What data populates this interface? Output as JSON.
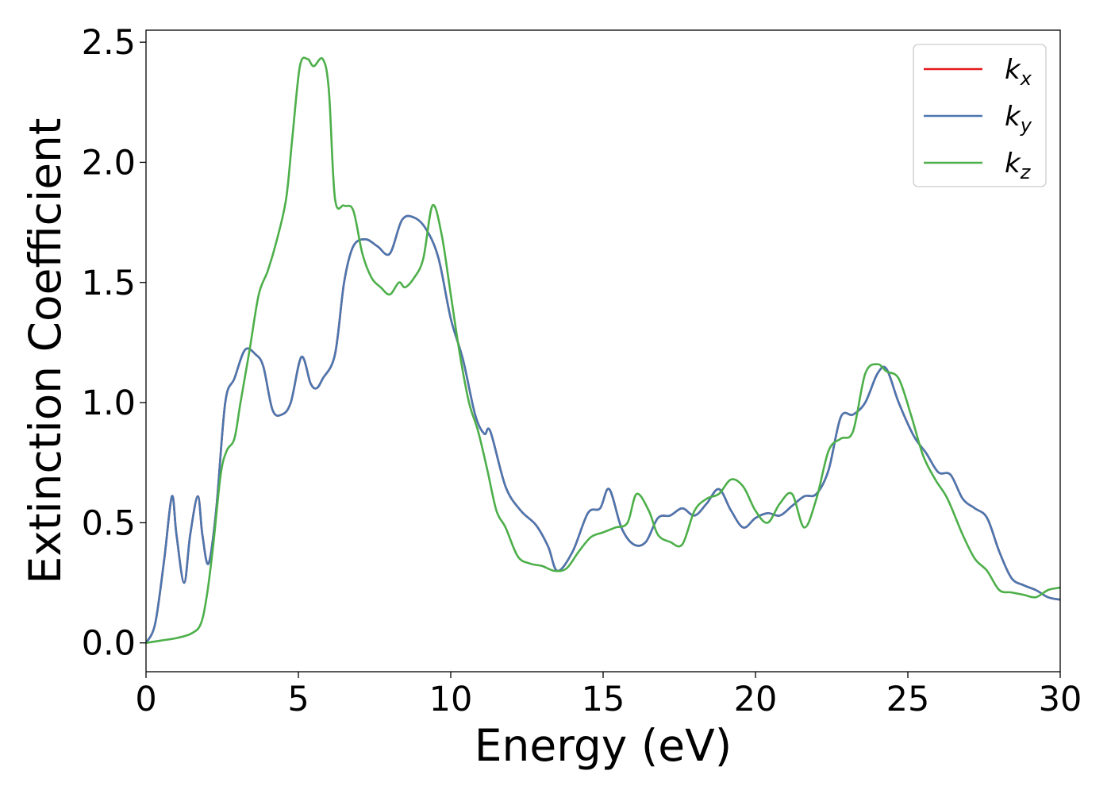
{
  "chart_data": {
    "type": "line",
    "title": "",
    "xlabel": "Energy (eV)",
    "ylabel": "Extinction Coefficient",
    "xlim": [
      0,
      30
    ],
    "ylim": [
      -0.12,
      2.55
    ],
    "xticks": [
      0,
      5,
      10,
      15,
      20,
      25,
      30
    ],
    "xtick_labels": [
      "0",
      "5",
      "10",
      "15",
      "20",
      "25",
      "30"
    ],
    "yticks": [
      0.0,
      0.5,
      1.0,
      1.5,
      2.0,
      2.5
    ],
    "ytick_labels": [
      "0.0",
      "0.5",
      "1.0",
      "1.5",
      "2.0",
      "2.5"
    ],
    "grid": false,
    "legend_position": "top-right",
    "series": [
      {
        "name": "k",
        "subscript": "x",
        "color": "#e41a1c",
        "x": [
          0,
          0.3,
          0.6,
          0.85,
          1.0,
          1.25,
          1.45,
          1.7,
          1.85,
          2.05,
          2.3,
          2.6,
          2.9,
          3.25,
          3.6,
          3.85,
          4.15,
          4.45,
          4.75,
          5.1,
          5.4,
          5.6,
          5.8,
          6.2,
          6.5,
          6.8,
          7.2,
          7.6,
          8.0,
          8.4,
          8.8,
          9.2,
          9.6,
          10.0,
          10.4,
          10.8,
          11.1,
          11.3,
          11.8,
          12.3,
          12.8,
          13.2,
          13.5,
          14.0,
          14.5,
          14.9,
          15.2,
          15.6,
          16.0,
          16.4,
          16.8,
          17.2,
          17.6,
          18.0,
          18.4,
          18.8,
          19.2,
          19.6,
          20.0,
          20.4,
          20.8,
          21.2,
          21.6,
          22.0,
          22.4,
          22.8,
          23.2,
          23.6,
          24.0,
          24.3,
          24.7,
          25.2,
          25.6,
          26.0,
          26.4,
          26.8,
          27.2,
          27.6,
          28.0,
          28.4,
          28.8,
          29.2,
          29.6,
          30.0
        ],
        "values": [
          0.0,
          0.08,
          0.35,
          0.61,
          0.45,
          0.25,
          0.45,
          0.61,
          0.45,
          0.33,
          0.55,
          1.0,
          1.1,
          1.22,
          1.2,
          1.15,
          0.97,
          0.95,
          1.0,
          1.19,
          1.08,
          1.06,
          1.1,
          1.2,
          1.5,
          1.65,
          1.68,
          1.65,
          1.62,
          1.76,
          1.77,
          1.72,
          1.6,
          1.35,
          1.18,
          0.95,
          0.87,
          0.88,
          0.65,
          0.55,
          0.49,
          0.4,
          0.3,
          0.38,
          0.54,
          0.56,
          0.64,
          0.48,
          0.41,
          0.42,
          0.52,
          0.53,
          0.56,
          0.53,
          0.58,
          0.64,
          0.55,
          0.48,
          0.52,
          0.54,
          0.53,
          0.57,
          0.61,
          0.62,
          0.72,
          0.94,
          0.95,
          1.0,
          1.12,
          1.14,
          1.0,
          0.86,
          0.79,
          0.71,
          0.7,
          0.6,
          0.56,
          0.52,
          0.38,
          0.27,
          0.24,
          0.22,
          0.19,
          0.18
        ]
      },
      {
        "name": "k",
        "subscript": "y",
        "color": "#4a77b0",
        "x": [
          0,
          0.3,
          0.6,
          0.85,
          1.0,
          1.25,
          1.45,
          1.7,
          1.85,
          2.05,
          2.3,
          2.6,
          2.9,
          3.25,
          3.6,
          3.85,
          4.15,
          4.45,
          4.75,
          5.1,
          5.4,
          5.6,
          5.8,
          6.2,
          6.5,
          6.8,
          7.2,
          7.6,
          8.0,
          8.4,
          8.8,
          9.2,
          9.6,
          10.0,
          10.4,
          10.8,
          11.1,
          11.3,
          11.8,
          12.3,
          12.8,
          13.2,
          13.5,
          14.0,
          14.5,
          14.9,
          15.2,
          15.6,
          16.0,
          16.4,
          16.8,
          17.2,
          17.6,
          18.0,
          18.4,
          18.8,
          19.2,
          19.6,
          20.0,
          20.4,
          20.8,
          21.2,
          21.6,
          22.0,
          22.4,
          22.8,
          23.2,
          23.6,
          24.0,
          24.3,
          24.7,
          25.2,
          25.6,
          26.0,
          26.4,
          26.8,
          27.2,
          27.6,
          28.0,
          28.4,
          28.8,
          29.2,
          29.6,
          30.0
        ],
        "values": [
          0.0,
          0.08,
          0.35,
          0.61,
          0.45,
          0.25,
          0.45,
          0.61,
          0.45,
          0.33,
          0.55,
          1.0,
          1.1,
          1.22,
          1.2,
          1.15,
          0.97,
          0.95,
          1.0,
          1.19,
          1.08,
          1.06,
          1.1,
          1.2,
          1.5,
          1.65,
          1.68,
          1.65,
          1.62,
          1.76,
          1.77,
          1.72,
          1.6,
          1.35,
          1.18,
          0.95,
          0.87,
          0.88,
          0.65,
          0.55,
          0.49,
          0.4,
          0.3,
          0.38,
          0.54,
          0.56,
          0.64,
          0.48,
          0.41,
          0.42,
          0.52,
          0.53,
          0.56,
          0.53,
          0.58,
          0.64,
          0.55,
          0.48,
          0.52,
          0.54,
          0.53,
          0.57,
          0.61,
          0.62,
          0.72,
          0.94,
          0.95,
          1.0,
          1.12,
          1.14,
          1.0,
          0.86,
          0.79,
          0.71,
          0.7,
          0.6,
          0.56,
          0.52,
          0.38,
          0.27,
          0.24,
          0.22,
          0.19,
          0.18
        ]
      },
      {
        "name": "k",
        "subscript": "z",
        "color": "#4daf4a",
        "x": [
          0,
          0.5,
          1.0,
          1.5,
          1.8,
          2.0,
          2.2,
          2.45,
          2.65,
          2.9,
          3.1,
          3.4,
          3.7,
          4.0,
          4.3,
          4.6,
          4.8,
          5.05,
          5.3,
          5.5,
          5.8,
          6.0,
          6.2,
          6.5,
          6.8,
          7.1,
          7.4,
          7.7,
          8.0,
          8.3,
          8.5,
          8.8,
          9.1,
          9.4,
          9.7,
          10.0,
          10.3,
          10.6,
          10.9,
          11.2,
          11.5,
          11.8,
          12.2,
          12.6,
          13.0,
          13.4,
          13.8,
          14.2,
          14.6,
          15.0,
          15.4,
          15.8,
          16.1,
          16.5,
          16.8,
          17.2,
          17.6,
          18.0,
          18.4,
          18.8,
          19.2,
          19.6,
          20.0,
          20.4,
          20.8,
          21.2,
          21.6,
          22.0,
          22.4,
          22.8,
          23.2,
          23.6,
          24.0,
          24.3,
          24.7,
          25.1,
          25.5,
          25.9,
          26.3,
          26.8,
          27.2,
          27.6,
          28.0,
          28.4,
          28.8,
          29.2,
          29.6,
          30.0
        ],
        "values": [
          0.0,
          0.01,
          0.02,
          0.04,
          0.08,
          0.2,
          0.4,
          0.7,
          0.8,
          0.85,
          1.0,
          1.22,
          1.45,
          1.55,
          1.68,
          1.85,
          2.1,
          2.4,
          2.43,
          2.4,
          2.43,
          2.3,
          1.85,
          1.82,
          1.8,
          1.62,
          1.52,
          1.48,
          1.45,
          1.5,
          1.48,
          1.52,
          1.6,
          1.82,
          1.7,
          1.45,
          1.2,
          1.0,
          0.88,
          0.72,
          0.55,
          0.48,
          0.36,
          0.33,
          0.32,
          0.3,
          0.31,
          0.38,
          0.44,
          0.46,
          0.48,
          0.5,
          0.62,
          0.55,
          0.45,
          0.42,
          0.41,
          0.55,
          0.6,
          0.62,
          0.68,
          0.65,
          0.55,
          0.5,
          0.58,
          0.62,
          0.48,
          0.6,
          0.8,
          0.85,
          0.88,
          1.12,
          1.16,
          1.13,
          1.1,
          0.95,
          0.78,
          0.68,
          0.6,
          0.45,
          0.35,
          0.3,
          0.22,
          0.21,
          0.2,
          0.19,
          0.22,
          0.23
        ]
      }
    ]
  }
}
